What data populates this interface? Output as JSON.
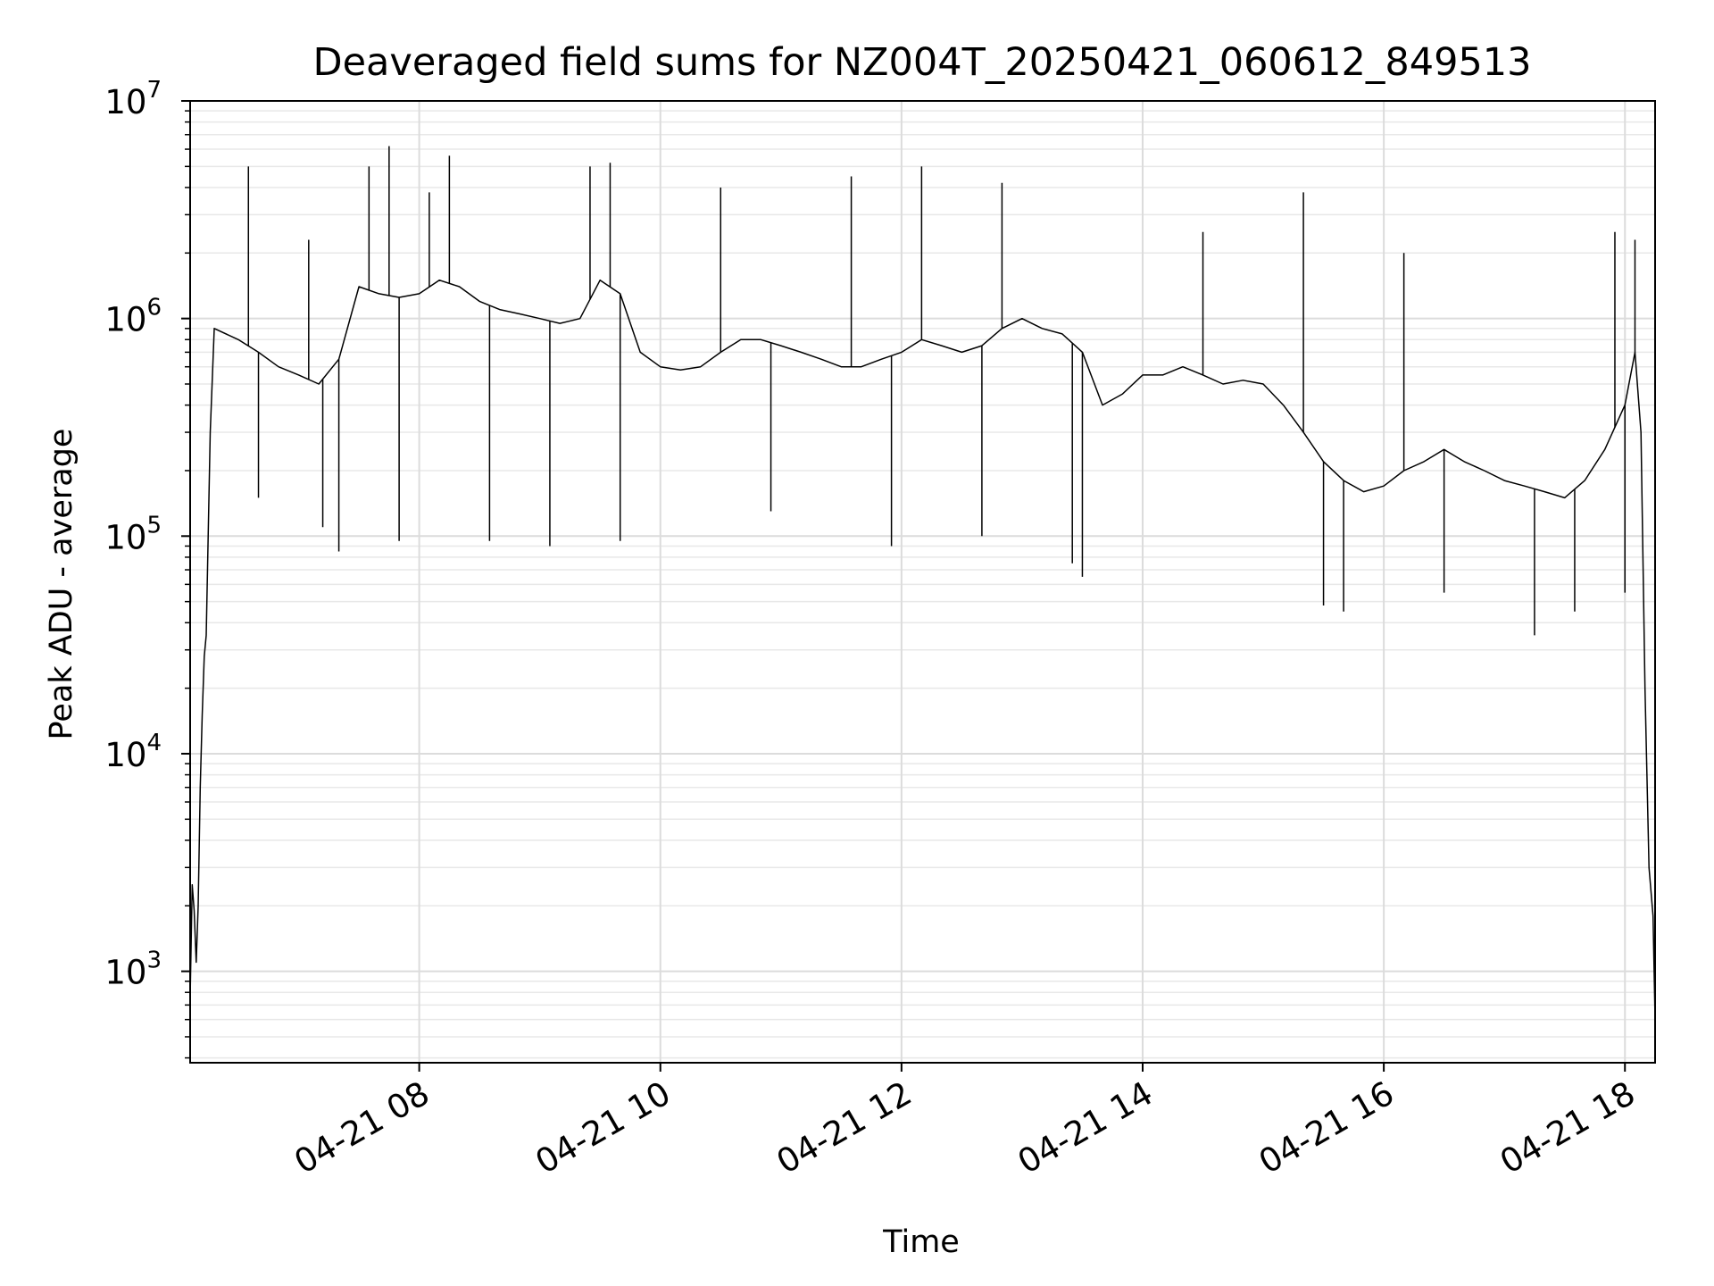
{
  "chart_data": {
    "type": "line",
    "title": "Deaveraged field sums for NZ004T_20250421_060612_849513",
    "xlabel": "Time",
    "ylabel": "Peak ADU - average",
    "xscale": "time",
    "yscale": "log",
    "xlim": [
      "2025-04-21 06:06",
      "2025-04-21 18:15"
    ],
    "ylim": [
      380,
      10000000
    ],
    "grid": true,
    "line_color": "#000000",
    "x_ticks": [
      {
        "t": "2025-04-21 08:00",
        "label": "04-21 08"
      },
      {
        "t": "2025-04-21 10:00",
        "label": "04-21 10"
      },
      {
        "t": "2025-04-21 12:00",
        "label": "04-21 12"
      },
      {
        "t": "2025-04-21 14:00",
        "label": "04-21 14"
      },
      {
        "t": "2025-04-21 16:00",
        "label": "04-21 16"
      },
      {
        "t": "2025-04-21 18:00",
        "label": "04-21 18"
      }
    ],
    "y_ticks": [
      {
        "value": 1000,
        "base": "10",
        "exp": "3"
      },
      {
        "value": 10000,
        "base": "10",
        "exp": "4"
      },
      {
        "value": 100000,
        "base": "10",
        "exp": "5"
      },
      {
        "value": 1000000,
        "base": "10",
        "exp": "6"
      },
      {
        "value": 10000000,
        "base": "10",
        "exp": "7"
      }
    ],
    "series": [
      {
        "points": [
          [
            "2025-04-21 06:06",
            750
          ],
          [
            "2025-04-21 06:07",
            2500
          ],
          [
            "2025-04-21 06:08",
            1900
          ],
          [
            "2025-04-21 06:09",
            1100
          ],
          [
            "2025-04-21 06:10",
            2000
          ],
          [
            "2025-04-21 06:11",
            7000
          ],
          [
            "2025-04-21 06:12",
            15000
          ],
          [
            "2025-04-21 06:13",
            28000
          ],
          [
            "2025-04-21 06:14",
            35000
          ],
          [
            "2025-04-21 06:16",
            300000
          ],
          [
            "2025-04-21 06:18",
            900000
          ],
          [
            "2025-04-21 06:30",
            800000
          ],
          [
            "2025-04-21 06:40",
            700000
          ],
          [
            "2025-04-21 06:50",
            600000
          ],
          [
            "2025-04-21 07:00",
            550000
          ],
          [
            "2025-04-21 07:10",
            500000
          ],
          [
            "2025-04-21 07:20",
            650000
          ],
          [
            "2025-04-21 07:30",
            1400000
          ],
          [
            "2025-04-21 07:40",
            1300000
          ],
          [
            "2025-04-21 07:50",
            1250000
          ],
          [
            "2025-04-21 08:00",
            1300000
          ],
          [
            "2025-04-21 08:10",
            1500000
          ],
          [
            "2025-04-21 08:20",
            1400000
          ],
          [
            "2025-04-21 08:30",
            1200000
          ],
          [
            "2025-04-21 08:40",
            1100000
          ],
          [
            "2025-04-21 08:50",
            1050000
          ],
          [
            "2025-04-21 09:00",
            1000000
          ],
          [
            "2025-04-21 09:10",
            950000
          ],
          [
            "2025-04-21 09:20",
            1000000
          ],
          [
            "2025-04-21 09:30",
            1500000
          ],
          [
            "2025-04-21 09:40",
            1300000
          ],
          [
            "2025-04-21 09:50",
            700000
          ],
          [
            "2025-04-21 10:00",
            600000
          ],
          [
            "2025-04-21 10:10",
            580000
          ],
          [
            "2025-04-21 10:20",
            600000
          ],
          [
            "2025-04-21 10:30",
            700000
          ],
          [
            "2025-04-21 10:40",
            800000
          ],
          [
            "2025-04-21 10:50",
            800000
          ],
          [
            "2025-04-21 11:00",
            750000
          ],
          [
            "2025-04-21 11:10",
            700000
          ],
          [
            "2025-04-21 11:20",
            650000
          ],
          [
            "2025-04-21 11:30",
            600000
          ],
          [
            "2025-04-21 11:40",
            600000
          ],
          [
            "2025-04-21 11:50",
            650000
          ],
          [
            "2025-04-21 12:00",
            700000
          ],
          [
            "2025-04-21 12:10",
            800000
          ],
          [
            "2025-04-21 12:20",
            750000
          ],
          [
            "2025-04-21 12:30",
            700000
          ],
          [
            "2025-04-21 12:40",
            750000
          ],
          [
            "2025-04-21 12:50",
            900000
          ],
          [
            "2025-04-21 13:00",
            1000000
          ],
          [
            "2025-04-21 13:10",
            900000
          ],
          [
            "2025-04-21 13:20",
            850000
          ],
          [
            "2025-04-21 13:30",
            700000
          ],
          [
            "2025-04-21 13:40",
            400000
          ],
          [
            "2025-04-21 13:50",
            450000
          ],
          [
            "2025-04-21 14:00",
            550000
          ],
          [
            "2025-04-21 14:10",
            550000
          ],
          [
            "2025-04-21 14:20",
            600000
          ],
          [
            "2025-04-21 14:30",
            550000
          ],
          [
            "2025-04-21 14:40",
            500000
          ],
          [
            "2025-04-21 14:50",
            520000
          ],
          [
            "2025-04-21 15:00",
            500000
          ],
          [
            "2025-04-21 15:10",
            400000
          ],
          [
            "2025-04-21 15:20",
            300000
          ],
          [
            "2025-04-21 15:30",
            220000
          ],
          [
            "2025-04-21 15:40",
            180000
          ],
          [
            "2025-04-21 15:50",
            160000
          ],
          [
            "2025-04-21 16:00",
            170000
          ],
          [
            "2025-04-21 16:10",
            200000
          ],
          [
            "2025-04-21 16:20",
            220000
          ],
          [
            "2025-04-21 16:30",
            250000
          ],
          [
            "2025-04-21 16:40",
            220000
          ],
          [
            "2025-04-21 16:50",
            200000
          ],
          [
            "2025-04-21 17:00",
            180000
          ],
          [
            "2025-04-21 17:10",
            170000
          ],
          [
            "2025-04-21 17:20",
            160000
          ],
          [
            "2025-04-21 17:30",
            150000
          ],
          [
            "2025-04-21 17:40",
            180000
          ],
          [
            "2025-04-21 17:50",
            250000
          ],
          [
            "2025-04-21 18:00",
            400000
          ],
          [
            "2025-04-21 18:05",
            700000
          ],
          [
            "2025-04-21 18:08",
            300000
          ],
          [
            "2025-04-21 18:10",
            20000
          ],
          [
            "2025-04-21 18:12",
            3000
          ],
          [
            "2025-04-21 18:14",
            1800
          ],
          [
            "2025-04-21 18:15",
            600
          ]
        ]
      }
    ],
    "spikes": [
      [
        "2025-04-21 06:35",
        5000000
      ],
      [
        "2025-04-21 06:40",
        150000
      ],
      [
        "2025-04-21 07:05",
        2300000
      ],
      [
        "2025-04-21 07:12",
        110000
      ],
      [
        "2025-04-21 07:20",
        85000
      ],
      [
        "2025-04-21 07:35",
        5000000
      ],
      [
        "2025-04-21 07:45",
        6200000
      ],
      [
        "2025-04-21 07:50",
        95000
      ],
      [
        "2025-04-21 08:05",
        3800000
      ],
      [
        "2025-04-21 08:15",
        5600000
      ],
      [
        "2025-04-21 08:35",
        95000
      ],
      [
        "2025-04-21 09:05",
        90000
      ],
      [
        "2025-04-21 09:25",
        5000000
      ],
      [
        "2025-04-21 09:35",
        5200000
      ],
      [
        "2025-04-21 09:40",
        95000
      ],
      [
        "2025-04-21 10:30",
        4000000
      ],
      [
        "2025-04-21 10:55",
        130000
      ],
      [
        "2025-04-21 11:35",
        4500000
      ],
      [
        "2025-04-21 11:55",
        90000
      ],
      [
        "2025-04-21 12:10",
        5000000
      ],
      [
        "2025-04-21 12:40",
        100000
      ],
      [
        "2025-04-21 12:50",
        4200000
      ],
      [
        "2025-04-21 13:25",
        75000
      ],
      [
        "2025-04-21 13:30",
        65000
      ],
      [
        "2025-04-21 14:30",
        2500000
      ],
      [
        "2025-04-21 15:20",
        3800000
      ],
      [
        "2025-04-21 15:30",
        48000
      ],
      [
        "2025-04-21 15:40",
        45000
      ],
      [
        "2025-04-21 16:10",
        2000000
      ],
      [
        "2025-04-21 16:30",
        55000
      ],
      [
        "2025-04-21 17:15",
        35000
      ],
      [
        "2025-04-21 17:35",
        45000
      ],
      [
        "2025-04-21 17:55",
        2500000
      ],
      [
        "2025-04-21 18:00",
        55000
      ],
      [
        "2025-04-21 18:05",
        2300000
      ]
    ]
  }
}
